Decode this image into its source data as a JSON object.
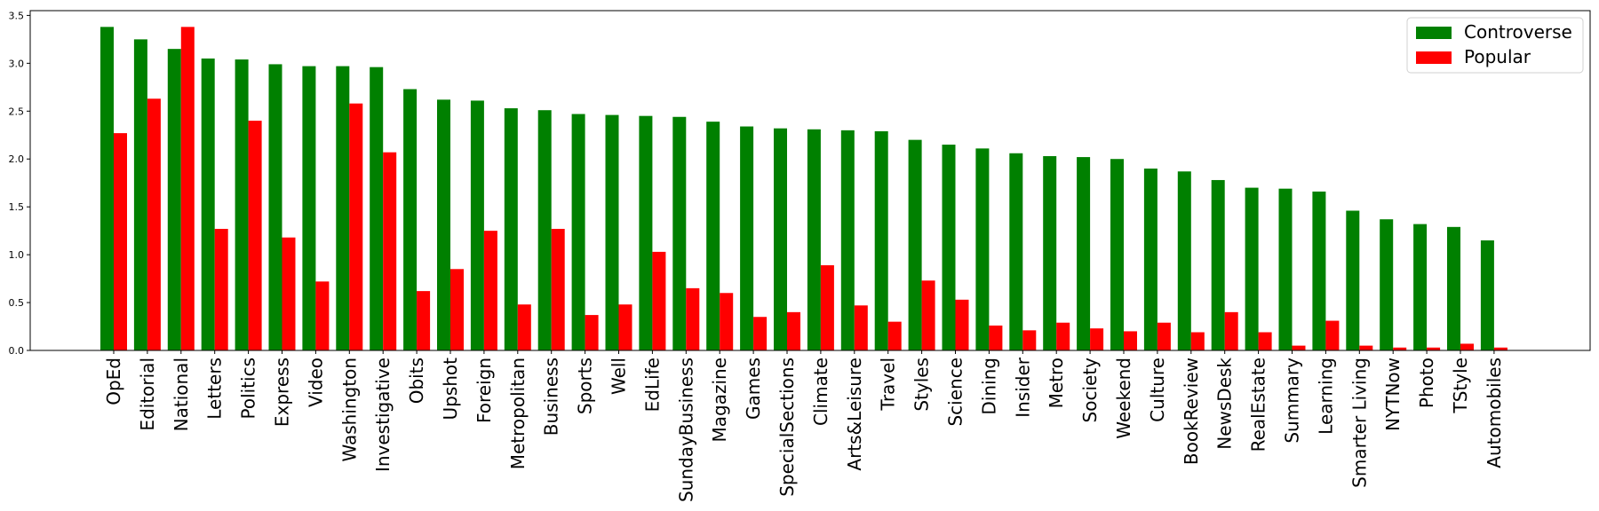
{
  "chart_data": {
    "type": "bar",
    "categories": [
      "OpEd",
      "Editorial",
      "National",
      "Letters",
      "Politics",
      "Express",
      "Video",
      "Washington",
      "Investigative",
      "Obits",
      "Upshot",
      "Foreign",
      "Metropolitan",
      "Business",
      "Sports",
      "Well",
      "EdLife",
      "SundayBusiness",
      "Magazine",
      "Games",
      "SpecialSections",
      "Climate",
      "Arts&Leisure",
      "Travel",
      "Styles",
      "Science",
      "Dining",
      "Insider",
      "Metro",
      "Society",
      "Weekend",
      "Culture",
      "BookReview",
      "NewsDesk",
      "RealEstate",
      "Summary",
      "Learning",
      "Smarter Living",
      "NYTNow",
      "Photo",
      "TStyle",
      "Automobiles"
    ],
    "series": [
      {
        "name": "Controverse",
        "color": "#008000",
        "values": [
          3.38,
          3.25,
          3.15,
          3.05,
          3.04,
          2.99,
          2.97,
          2.97,
          2.96,
          2.73,
          2.62,
          2.61,
          2.53,
          2.51,
          2.47,
          2.46,
          2.45,
          2.44,
          2.39,
          2.34,
          2.32,
          2.31,
          2.3,
          2.29,
          2.2,
          2.15,
          2.11,
          2.06,
          2.03,
          2.02,
          2.0,
          1.9,
          1.87,
          1.78,
          1.7,
          1.69,
          1.66,
          1.46,
          1.37,
          1.32,
          1.29,
          1.15
        ]
      },
      {
        "name": "Popular",
        "color": "#ff0000",
        "values": [
          2.27,
          2.63,
          3.38,
          1.27,
          2.4,
          1.18,
          0.72,
          2.58,
          2.07,
          0.62,
          0.85,
          1.25,
          0.48,
          1.27,
          0.37,
          0.48,
          1.03,
          0.65,
          0.6,
          0.35,
          0.4,
          0.89,
          0.47,
          0.3,
          0.73,
          0.53,
          0.26,
          0.21,
          0.29,
          0.23,
          0.2,
          0.29,
          0.19,
          0.4,
          0.19,
          0.05,
          0.31,
          0.05,
          0.03,
          0.03,
          0.07,
          0.03
        ]
      }
    ],
    "yticks": [
      "0.0",
      "0.5",
      "1.0",
      "1.5",
      "2.0",
      "2.5",
      "3.0",
      "3.5"
    ],
    "ylim": [
      0,
      3.55
    ],
    "legend": "top-right",
    "grid": false,
    "title": "",
    "xlabel": "",
    "ylabel": ""
  }
}
